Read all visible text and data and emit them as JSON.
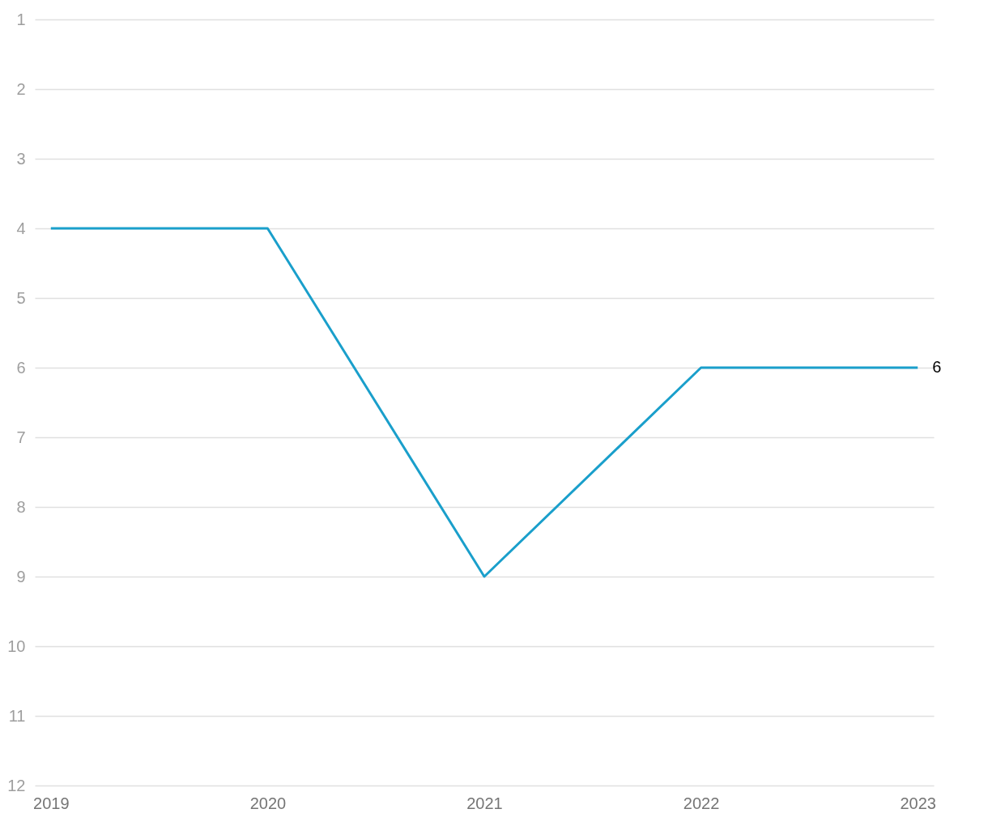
{
  "chart_data": {
    "type": "line",
    "categories": [
      "2019",
      "2020",
      "2021",
      "2022",
      "2023"
    ],
    "series": [
      {
        "color": "#1a9fcb",
        "values": [
          4,
          4,
          9,
          6,
          6
        ],
        "value_labels": [
          null,
          null,
          null,
          null,
          "6"
        ]
      }
    ],
    "ylim": [
      12,
      1
    ],
    "yticks": [
      1,
      2,
      3,
      4,
      5,
      6,
      7,
      8,
      9,
      10,
      11,
      12
    ],
    "grid": "y",
    "marker": "none",
    "line_style": "solid"
  }
}
